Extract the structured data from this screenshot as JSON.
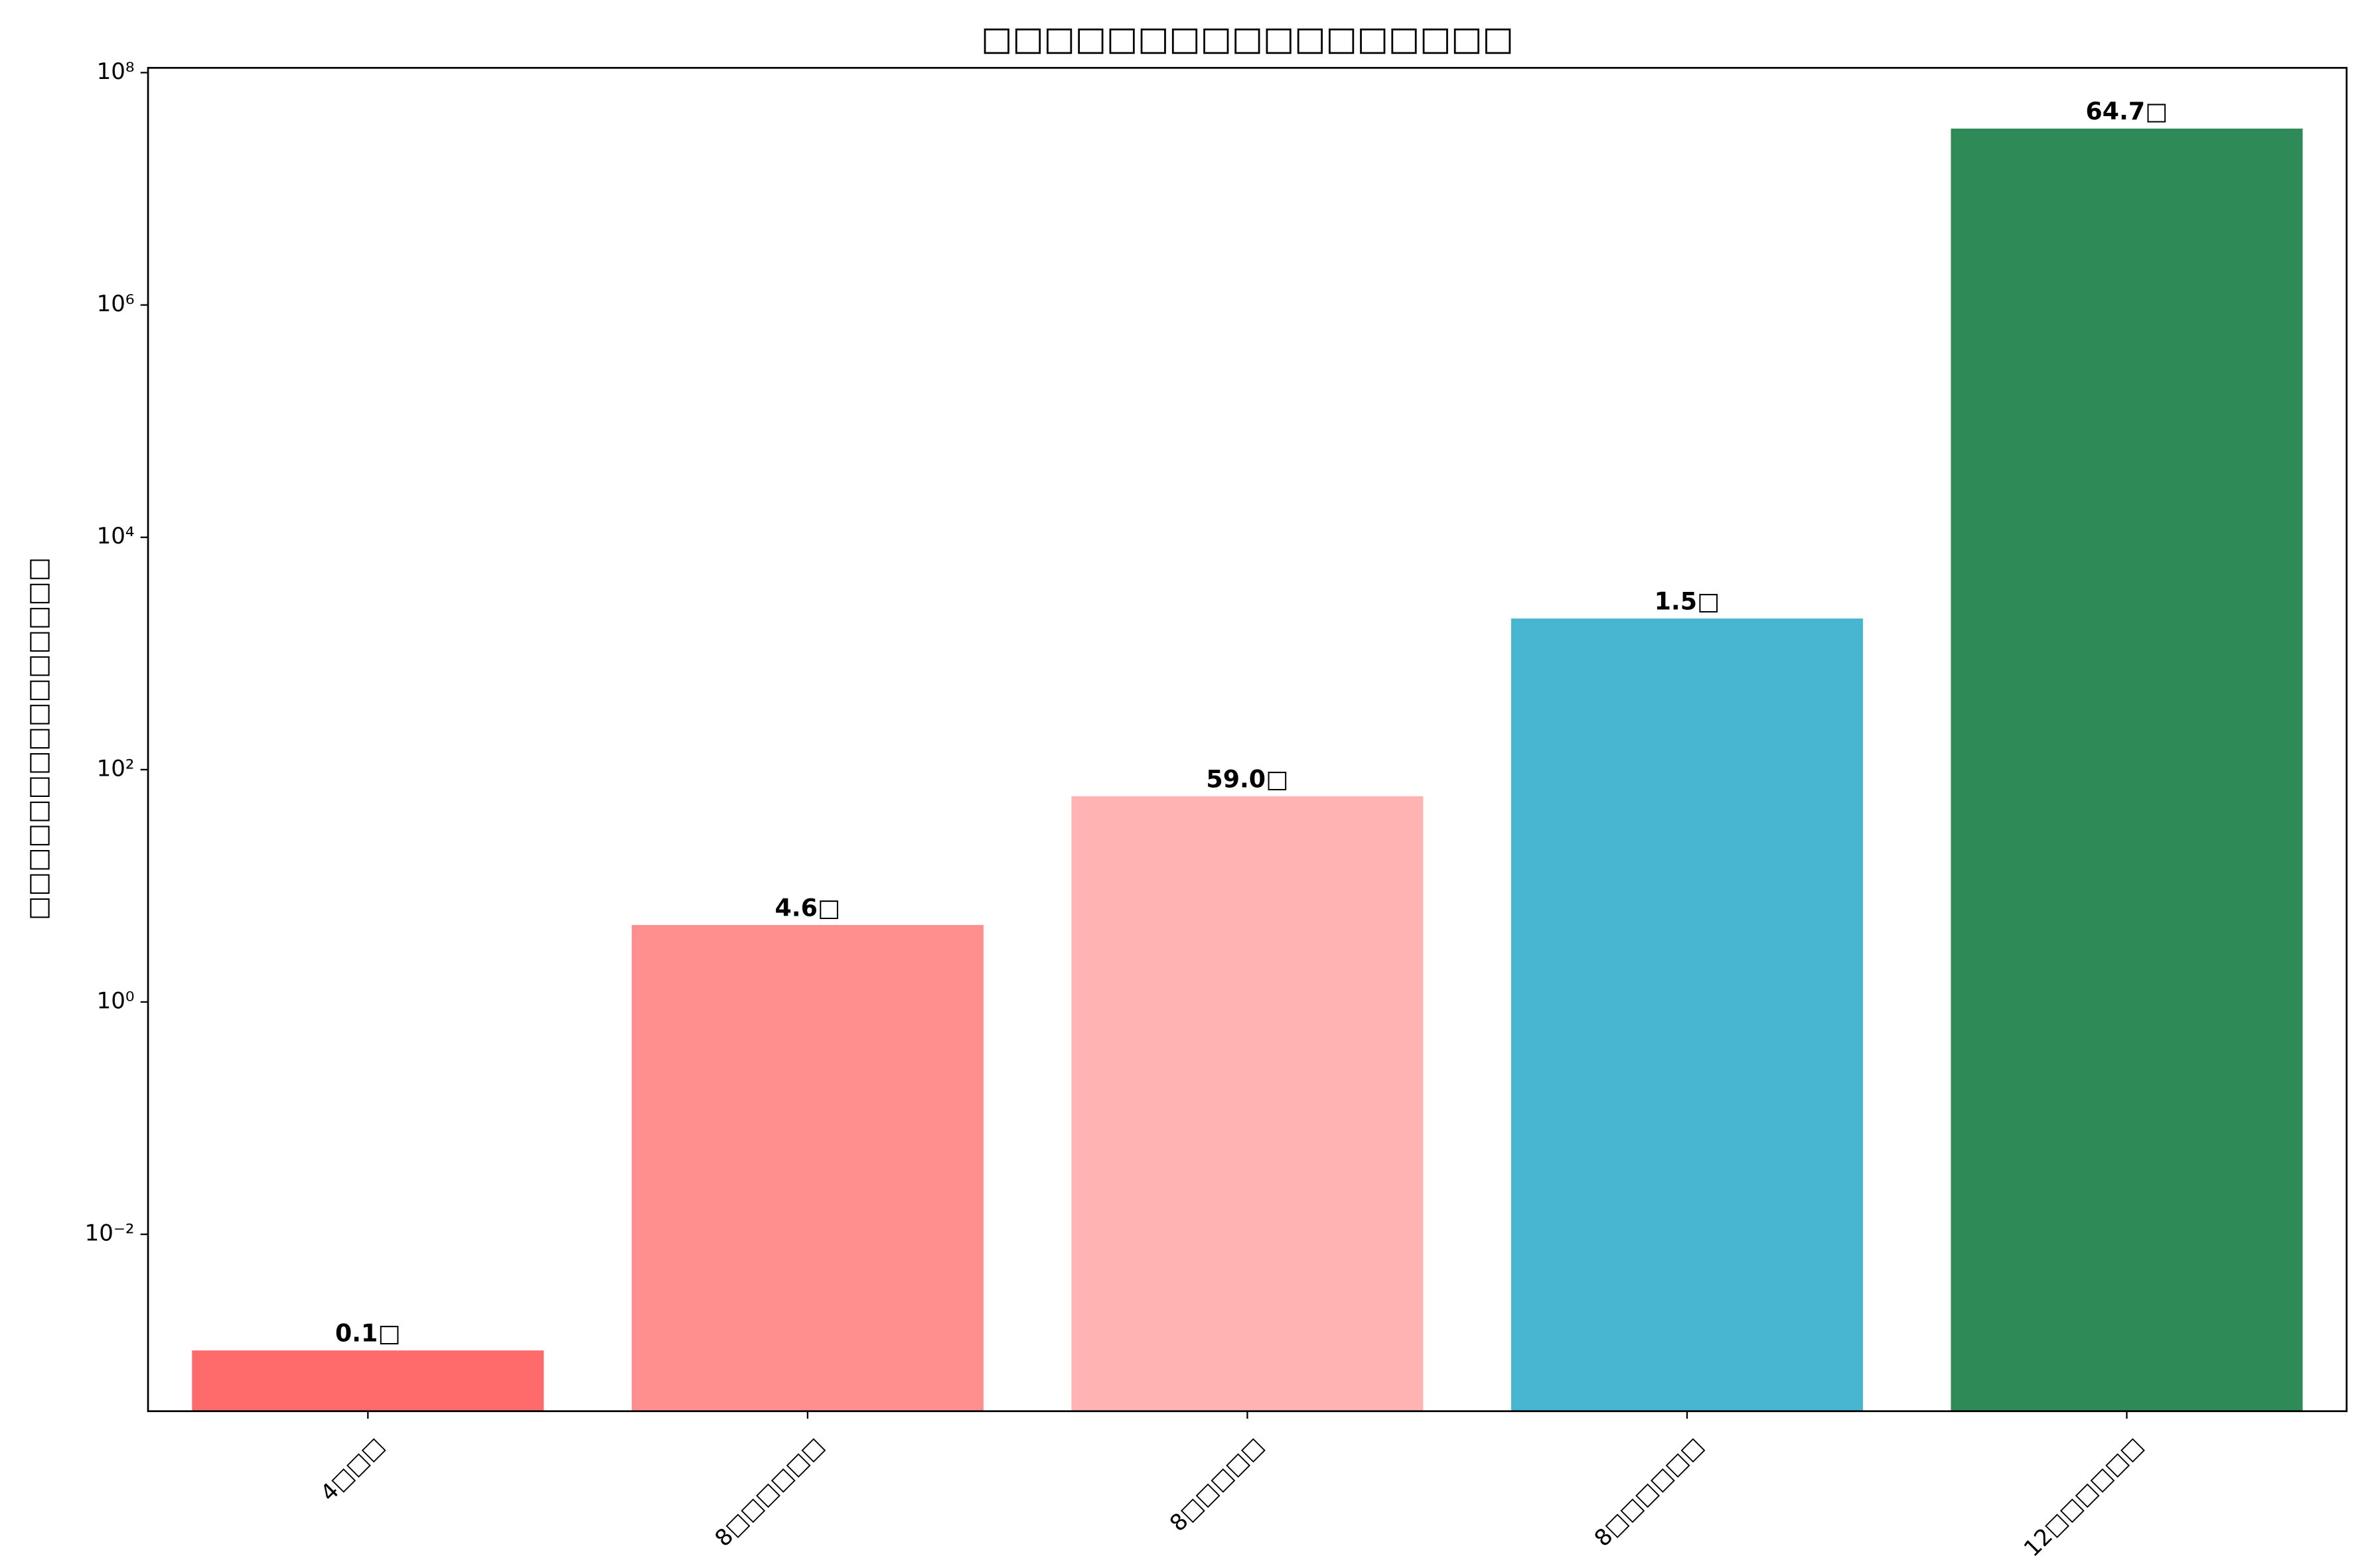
{
  "chart_data": {
    "type": "bar",
    "title": "□□□□□□□□□□□□□□□□□",
    "y_label": "□□□□□□□□□□□□□□□",
    "categories": [
      "4□□□",
      "8□□□□□□",
      "8□□□□□",
      "8□□□□□□",
      "12□□□□□□"
    ],
    "values": [
      0.001,
      4.6,
      59,
      2000,
      33000000
    ],
    "value_labels": [
      "0.1□",
      "4.6□",
      "59.0□",
      "1.5□",
      "64.7□"
    ],
    "colors": [
      "#ff6b6b",
      "#ff8e8e",
      "#ffb3b3",
      "#48b5d1",
      "#2e8b57"
    ],
    "y_scale": "log",
    "ylim": [
      0.0003,
      110000000
    ],
    "yticks": [
      {
        "value": 0.01,
        "label": "10⁻²"
      },
      {
        "value": 1,
        "label": "10⁰"
      },
      {
        "value": 100,
        "label": "10²"
      },
      {
        "value": 10000,
        "label": "10⁴"
      },
      {
        "value": 1000000,
        "label": "10⁶"
      },
      {
        "value": 100000000,
        "label": "10⁸"
      }
    ],
    "grid": false
  }
}
